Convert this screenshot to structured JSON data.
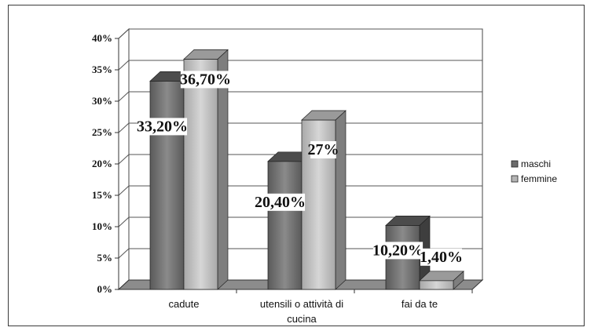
{
  "chart_data": {
    "type": "bar",
    "categories": [
      "cadute",
      "utensili o attività di cucina",
      "fai da te"
    ],
    "category_lines": [
      [
        "cadute"
      ],
      [
        "utensili o attività di",
        "cucina"
      ],
      [
        "fai da te"
      ]
    ],
    "series": [
      {
        "name": "maschi",
        "values": [
          33.2,
          20.4,
          10.2
        ],
        "labels": [
          "33,20%",
          "20,40%",
          "10,20%"
        ],
        "color": "#6b6b6b"
      },
      {
        "name": "femmine",
        "values": [
          36.7,
          27.0,
          1.4
        ],
        "labels": [
          "36,70%",
          "27%",
          "1,40%"
        ],
        "color": "#b4b4b4"
      }
    ],
    "yticks": [
      "0%",
      "5%",
      "10%",
      "15%",
      "20%",
      "25%",
      "30%",
      "35%",
      "40%"
    ],
    "ylim": [
      0,
      40
    ],
    "grid": true,
    "three_d": true,
    "legend_position": "right"
  }
}
